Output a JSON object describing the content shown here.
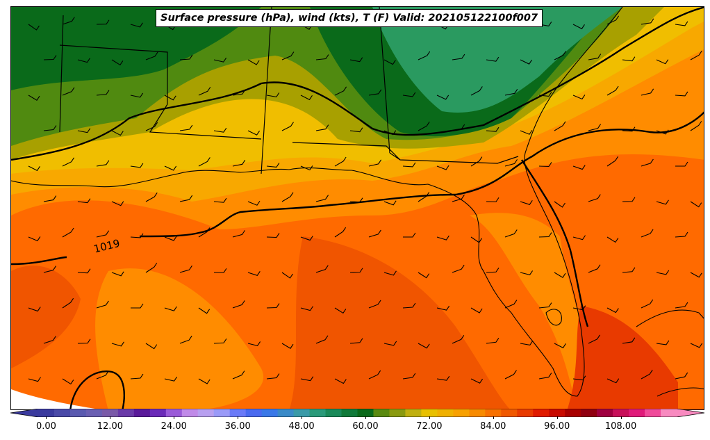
{
  "title": "Surface pressure (hPa), wind (kts), T (F) Valid: 202105122100f007",
  "isobar_label": "1019",
  "colorbar": {
    "ticks": [
      "0.00",
      "12.00",
      "24.00",
      "36.00",
      "48.00",
      "60.00",
      "72.00",
      "84.00",
      "96.00",
      "108.00"
    ],
    "colors": [
      "#3a3a9e",
      "#4a4aa8",
      "#5a5ab0",
      "#6a5fb2",
      "#7a5aa8",
      "#6a3aa8",
      "#5a1a9a",
      "#6a2ab8",
      "#9a5ad8",
      "#c08ae8",
      "#b8a0f0",
      "#9a9af8",
      "#6a7af8",
      "#4a6af0",
      "#3a78e8",
      "#3a8ac8",
      "#3a9aa8",
      "#2a9a7a",
      "#1a8a5a",
      "#107a3a",
      "#0a6a1a",
      "#5a8a10",
      "#8a9a10",
      "#c0b010",
      "#e8c000",
      "#f0b000",
      "#f8a000",
      "#f88a00",
      "#f87000",
      "#f05800",
      "#e83a00",
      "#e01a00",
      "#c80a00",
      "#a80000",
      "#900010",
      "#a00040",
      "#c8105a",
      "#e01a7a",
      "#f04a9a",
      "#f88ac0"
    ]
  }
}
